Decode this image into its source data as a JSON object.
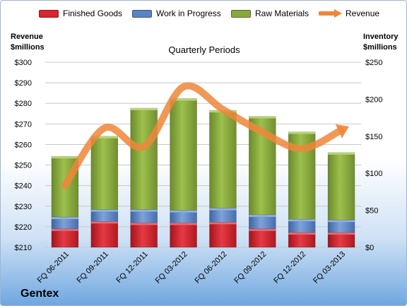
{
  "legend": {
    "finished_goods": "Finished Goods",
    "work_in_progress": "Work in Progress",
    "raw_materials": "Raw Materials",
    "revenue": "Revenue"
  },
  "left_axis_title": [
    "Revenue",
    "$millions"
  ],
  "right_axis_title": [
    "Inventory",
    "$millions"
  ],
  "subtitle": "Quarterly Periods",
  "company": "Gentex",
  "colors": {
    "finished_goods": "#d9252f",
    "work_in_progress": "#5b84c4",
    "raw_materials": "#86a83c",
    "revenue": "#f0863a"
  },
  "chart_data": {
    "type": "bar",
    "stacked": true,
    "categories": [
      "FQ 06-2011",
      "FQ 09-2011",
      "FQ 12-2011",
      "FQ 03-2012",
      "FQ 06-2012",
      "FQ 09-2012",
      "FQ 12-2012",
      "FQ 03-2013"
    ],
    "series": [
      {
        "name": "Finished Goods",
        "axis": "right",
        "values": [
          25,
          35,
          33,
          33,
          34,
          25,
          20,
          20
        ]
      },
      {
        "name": "Work in Progress",
        "axis": "right",
        "values": [
          16,
          16,
          18,
          17,
          19,
          19,
          18,
          17
        ]
      },
      {
        "name": "Raw Materials",
        "axis": "right",
        "values": [
          82,
          99,
          137,
          151,
          132,
          133,
          118,
          91
        ]
      },
      {
        "name": "Revenue",
        "type": "line",
        "axis": "left",
        "values": [
          240,
          268,
          259,
          288,
          277,
          266,
          258,
          267
        ]
      }
    ],
    "left_axis": {
      "label": "Revenue $millions",
      "ylim": [
        210,
        300
      ],
      "ticks": [
        "$210",
        "$220",
        "$230",
        "$240",
        "$250",
        "$260",
        "$270",
        "$280",
        "$290",
        "$300"
      ]
    },
    "right_axis": {
      "label": "Inventory $millions",
      "ylim": [
        0,
        250
      ],
      "ticks": [
        "$0",
        "$50",
        "$100",
        "$150",
        "$200",
        "$250"
      ]
    },
    "grid": true,
    "legend_position": "top"
  }
}
